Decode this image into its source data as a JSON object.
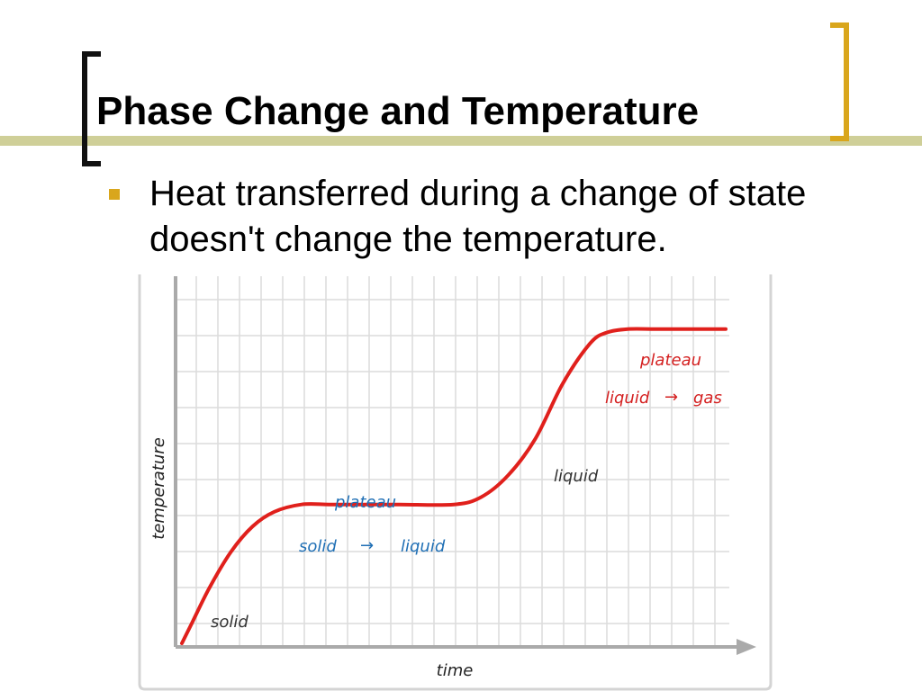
{
  "slide": {
    "title": "Phase Change and Temperature",
    "bullet": "Heat transferred during a change of state doesn't change the temperature."
  },
  "colors": {
    "title_rule": "#cfcf98",
    "bracket_left": "#111111",
    "bracket_right": "#d9a61c",
    "bullet_marker": "#d9a61c",
    "curve": "#e0201c",
    "blue_labels": "#1f6fb5",
    "red_labels": "#d42020",
    "gray_labels": "#333333",
    "grid": "#dcdcdc",
    "axis": "#aaaaaa"
  },
  "chart_data": {
    "type": "line",
    "title": "",
    "xlabel": "time",
    "ylabel": "temperature",
    "xlim": [
      0,
      10
    ],
    "ylim": [
      0,
      10
    ],
    "grid": true,
    "axis_ticks_labeled": false,
    "series": [
      {
        "x": [
          0,
          0.2,
          0.5,
          0.9,
          1.3,
          1.7,
          2.2,
          2.7,
          3.2,
          4.0,
          5.0,
          5.5,
          6.0,
          6.5,
          7.0,
          7.5,
          7.8,
          8.2,
          8.7,
          9.3,
          10.0
        ],
        "y": [
          0,
          0.6,
          1.5,
          2.5,
          3.2,
          3.6,
          3.8,
          3.8,
          3.8,
          3.8,
          3.8,
          4.0,
          4.6,
          5.6,
          7.1,
          8.2,
          8.5,
          8.6,
          8.6,
          8.6,
          8.6
        ]
      }
    ],
    "annotations": {
      "solid": "solid",
      "plateau_1": "plateau",
      "transition_1_from": "solid",
      "transition_1_arrow": "→",
      "transition_1_to": "liquid",
      "liquid": "liquid",
      "plateau_2": "plateau",
      "transition_2_from": "liquid",
      "transition_2_arrow": "→",
      "transition_2_to": "gas"
    }
  }
}
